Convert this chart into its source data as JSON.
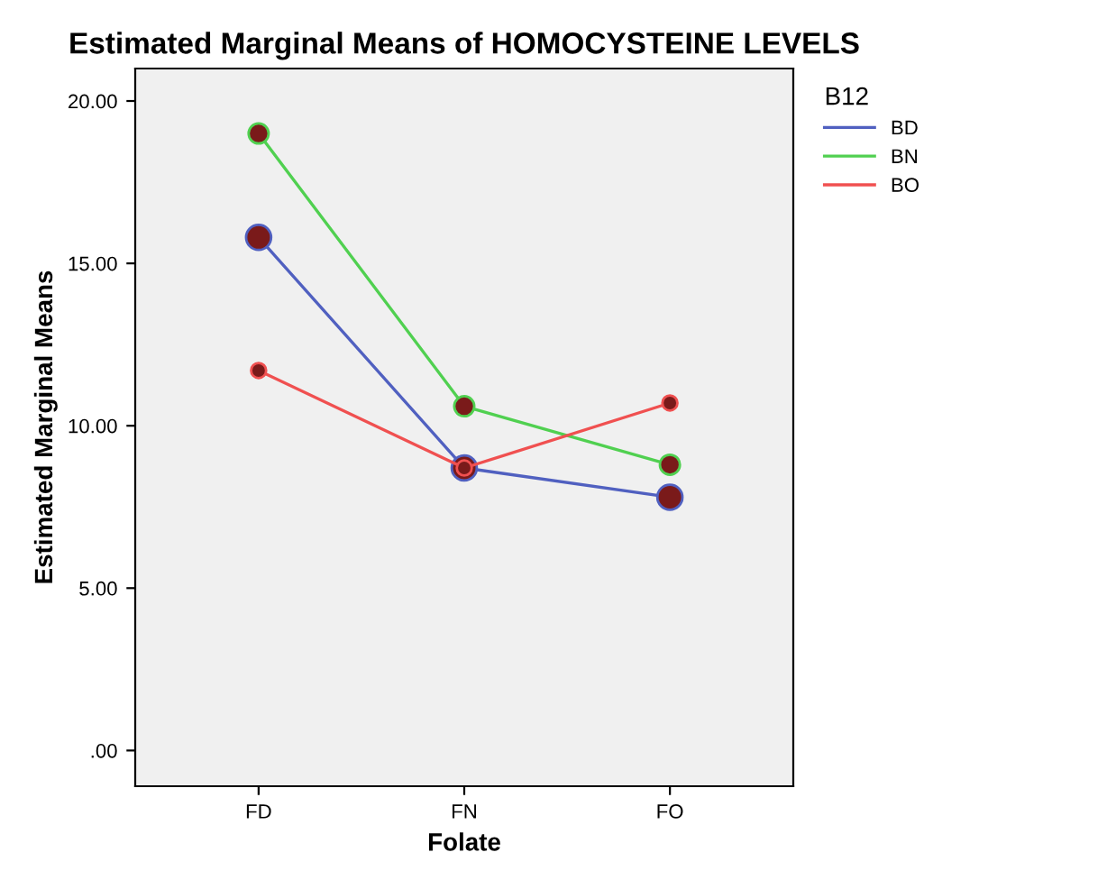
{
  "chart_data": {
    "type": "line",
    "title": "Estimated Marginal Means of HOMOCYSTEINE LEVELS",
    "xlabel": "Folate",
    "ylabel": "Estimated Marginal Means",
    "legend_title": "B12",
    "legend": "top right",
    "marker": "circle",
    "line_style": "solid",
    "grid": false,
    "categories": [
      "FD",
      "FN",
      "FO"
    ],
    "series": [
      {
        "name": "BD",
        "color": "#5060c0",
        "values": [
          15.8,
          8.7,
          7.8
        ]
      },
      {
        "name": "BN",
        "color": "#50d050",
        "values": [
          19.0,
          10.6,
          8.8
        ]
      },
      {
        "name": "BO",
        "color": "#f05050",
        "values": [
          11.7,
          8.7,
          10.7
        ]
      }
    ],
    "ylim": [
      -1.1,
      21
    ],
    "yticks": [
      {
        "value": 0,
        "label": ".00"
      },
      {
        "value": 5,
        "label": "5.00"
      },
      {
        "value": 10,
        "label": "10.00"
      },
      {
        "value": 15,
        "label": "15.00"
      },
      {
        "value": 20,
        "label": "20.00"
      }
    ]
  }
}
